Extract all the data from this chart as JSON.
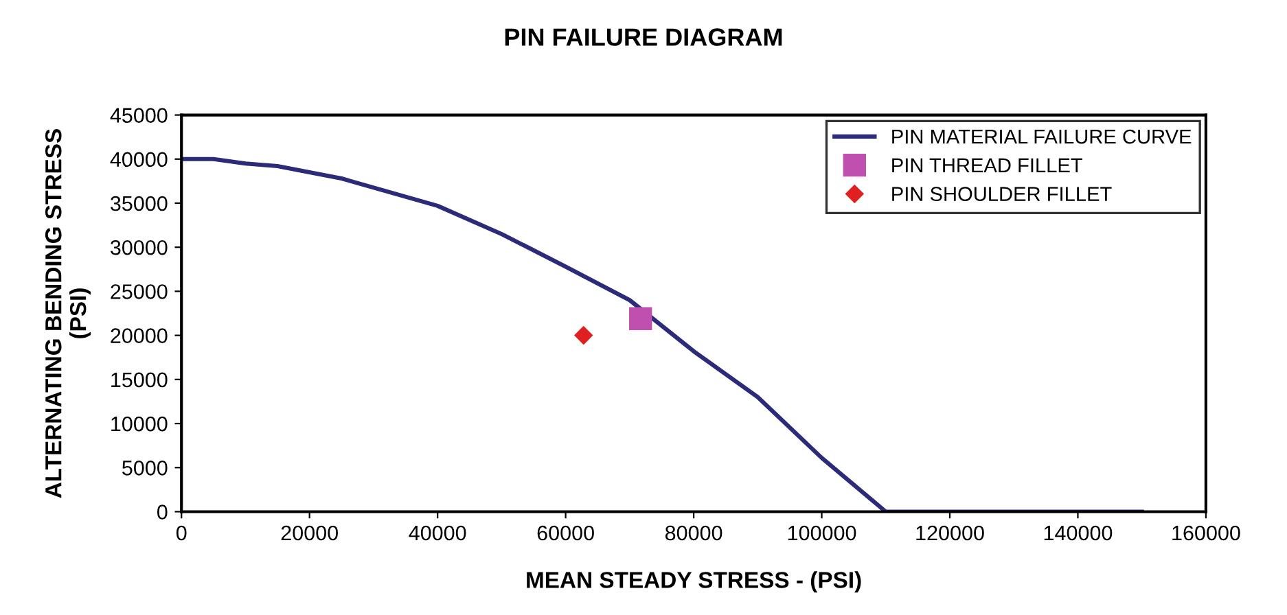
{
  "chart_data": {
    "type": "line",
    "title": "PIN FAILURE DIAGRAM",
    "xlabel": "MEAN STEADY STRESS - (PSI)",
    "ylabel": "ALTERNATING BENDING STRESS\n(PSI)",
    "xlim": [
      0,
      160000
    ],
    "xticks": [
      0,
      20000,
      40000,
      60000,
      80000,
      100000,
      120000,
      140000,
      160000
    ],
    "ylim": [
      0,
      45000
    ],
    "yticks": [
      0,
      5000,
      10000,
      15000,
      20000,
      25000,
      30000,
      35000,
      40000,
      45000
    ],
    "grid": false,
    "legend": "top right",
    "series": [
      {
        "name": "PIN MATERIAL FAILURE CURVE",
        "color": "#2b2b7a",
        "marker": "none",
        "x": [
          0,
          5000,
          10000,
          15000,
          25000,
          40000,
          50000,
          60000,
          70000,
          80000,
          90000,
          100000,
          110000,
          150000
        ],
        "values": [
          40000,
          40000,
          39500,
          39200,
          37800,
          34700,
          31500,
          27800,
          24000,
          18200,
          13000,
          6100,
          0,
          0
        ]
      },
      {
        "name": "PIN THREAD FILLET",
        "type": "scatter",
        "color": "#c050b0",
        "marker": "square",
        "x": [
          71700
        ],
        "values": [
          21900
        ]
      },
      {
        "name": "PIN SHOULDER FILLET",
        "type": "scatter",
        "color": "#e02020",
        "marker": "diamond",
        "x": [
          62800
        ],
        "values": [
          20000
        ]
      }
    ]
  }
}
